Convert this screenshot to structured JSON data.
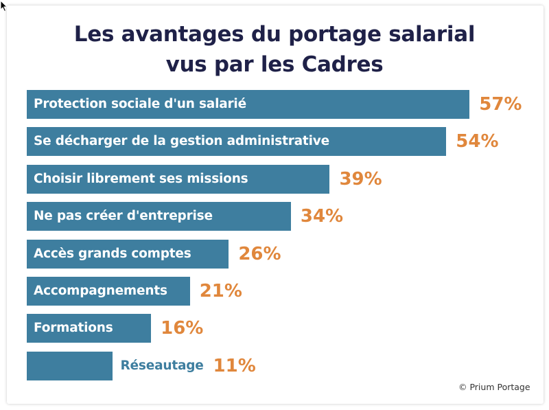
{
  "title_line1": "Les avantages du portage salarial",
  "title_line2": "vus par les Cadres",
  "credit": "© Prium Portage",
  "colors": {
    "bar": "#3e7e9f",
    "value": "#e0873c",
    "title": "#1f2148"
  },
  "chart_data": {
    "type": "bar",
    "orientation": "horizontal",
    "title": "Les avantages du portage salarial vus par les Cadres",
    "xlabel": "",
    "ylabel": "",
    "unit": "%",
    "grid": false,
    "categories": [
      "Protection sociale d'un salarié",
      "Se décharger de la gestion administrative",
      "Choisir librement ses missions",
      "Ne pas créer d'entreprise",
      "Accès grands comptes",
      "Accompagnements",
      "Formations",
      "Réseautage"
    ],
    "values": [
      57,
      54,
      39,
      34,
      26,
      21,
      16,
      11
    ],
    "value_labels": [
      "57%",
      "54%",
      "39%",
      "34%",
      "26%",
      "21%",
      "16%",
      "11%"
    ]
  }
}
